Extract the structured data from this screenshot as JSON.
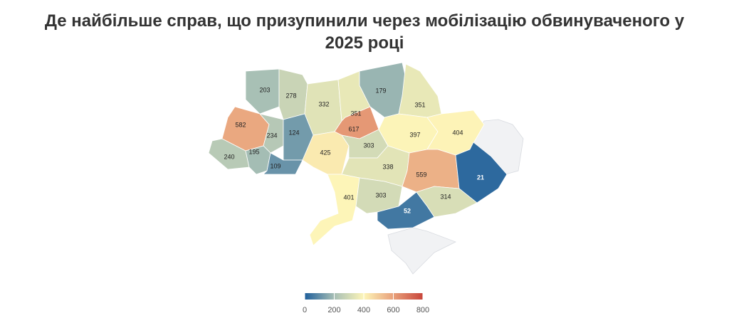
{
  "chart_data": {
    "type": "choropleth",
    "title": "Де найбільше справ, що призупинили через мобілізацію обвинуваченого у 2025 році",
    "values": [
      203,
      278,
      332,
      351,
      617,
      179,
      351,
      582,
      234,
      124,
      240,
      195,
      109,
      425,
      303,
      397,
      404,
      338,
      559,
      21,
      401,
      303,
      314,
      52
    ],
    "colorlim": [
      0,
      800
    ],
    "colorticks": [
      0,
      200,
      400,
      600,
      800
    ],
    "colorscale": [
      "#1f5f9b",
      "#a7bfb5",
      "#fdf5b8",
      "#e8a07a",
      "#c8453b"
    ]
  }
}
